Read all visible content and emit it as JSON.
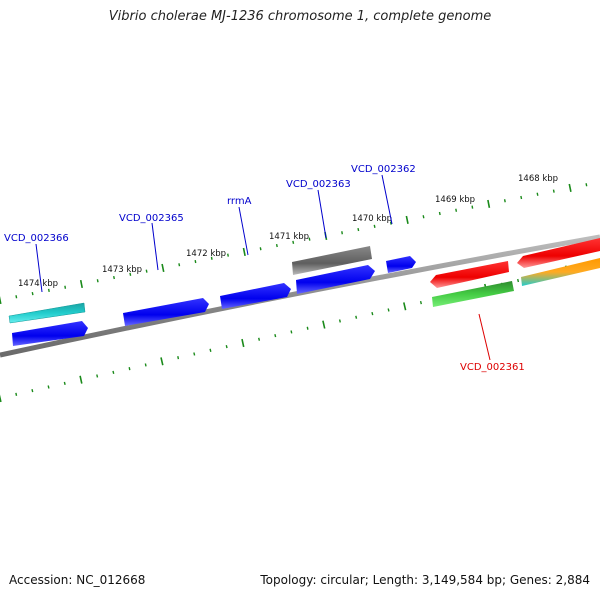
{
  "header": {
    "title": "Vibrio cholerae MJ-1236 chromosome 1, complete genome"
  },
  "footer": {
    "accession": "Accession: NC_012668",
    "summary": "Topology: circular; Length: 3,149,584 bp; Genes: 2,884"
  },
  "scale": {
    "tick_labels": [
      "1468 kbp",
      "1469 kbp",
      "1470 kbp",
      "1471 kbp",
      "1472 kbp",
      "1473 kbp",
      "1474 kbp"
    ]
  },
  "labels": {
    "VCD_002366": "VCD_002366",
    "VCD_002365": "VCD_002365",
    "rrmA": "rrmA",
    "VCD_002363": "VCD_002363",
    "VCD_002362": "VCD_002362",
    "VCD_002361": "VCD_002361"
  },
  "colors": {
    "backbone": "#8c8c8c",
    "tick": "#1a8a1a",
    "cds_blue": "#0000ee",
    "cds_gray": "#6e6e6e",
    "cds_red": "#ee0000",
    "cds_cyan": "#22cccc",
    "cds_teal": "#1aa3a3",
    "cds_green": "#2e9a2e",
    "cds_lightgreen": "#55dd55",
    "cds_orange": "#ff9900",
    "label_blue": "#0000cc",
    "label_red": "#dd0000"
  }
}
